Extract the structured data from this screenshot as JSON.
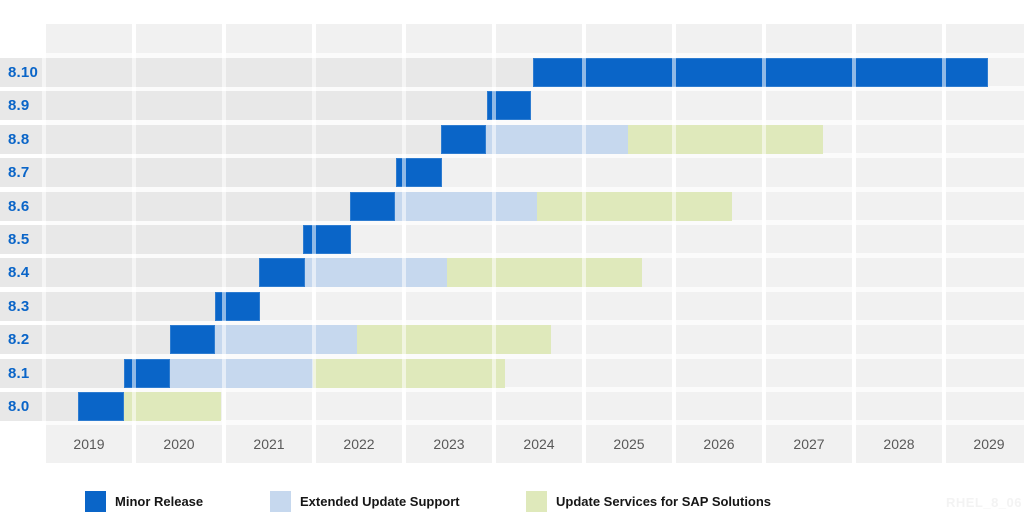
{
  "chart_data": {
    "type": "gantt",
    "title": "",
    "x_axis": {
      "tick_labels": [
        "2019",
        "2020",
        "2021",
        "2022",
        "2023",
        "2024",
        "2025",
        "2026",
        "2027",
        "2028",
        "2029"
      ],
      "range": [
        2019,
        2030
      ],
      "grid": true
    },
    "y_axis": {
      "labels": [
        "8.10",
        "8.9",
        "8.8",
        "8.7",
        "8.6",
        "8.5",
        "8.4",
        "8.3",
        "8.2",
        "8.1",
        "8.0"
      ]
    },
    "legend_position": "bottom",
    "rows": [
      {
        "label": "8.10",
        "minor_release": [
          2024.43,
          2029.49
        ],
        "extended_update_support": null,
        "update_services_sap": null
      },
      {
        "label": "8.9",
        "minor_release": [
          2023.92,
          2024.41
        ],
        "extended_update_support": null,
        "update_services_sap": null
      },
      {
        "label": "8.8",
        "minor_release": [
          2023.41,
          2023.91
        ],
        "extended_update_support": [
          2023.91,
          2025.49
        ],
        "update_services_sap": [
          2025.49,
          2027.66
        ]
      },
      {
        "label": "8.7",
        "minor_release": [
          2022.91,
          2023.42
        ],
        "extended_update_support": null,
        "update_services_sap": null
      },
      {
        "label": "8.6",
        "minor_release": [
          2022.4,
          2022.9
        ],
        "extended_update_support": [
          2022.9,
          2024.48
        ],
        "update_services_sap": [
          2024.48,
          2026.64
        ]
      },
      {
        "label": "8.5",
        "minor_release": [
          2021.88,
          2022.41
        ],
        "extended_update_support": null,
        "update_services_sap": null
      },
      {
        "label": "8.4",
        "minor_release": [
          2021.39,
          2021.9
        ],
        "extended_update_support": [
          2021.9,
          2023.48
        ],
        "update_services_sap": [
          2023.48,
          2025.64
        ]
      },
      {
        "label": "8.3",
        "minor_release": [
          2020.9,
          2021.4
        ],
        "extended_update_support": null,
        "update_services_sap": null
      },
      {
        "label": "8.2",
        "minor_release": [
          2020.4,
          2020.9
        ],
        "extended_update_support": [
          2020.9,
          2022.48
        ],
        "update_services_sap": [
          2022.48,
          2024.63
        ]
      },
      {
        "label": "8.1",
        "minor_release": [
          2019.89,
          2020.4
        ],
        "extended_update_support": [
          2020.4,
          2021.99
        ],
        "update_services_sap": [
          2021.99,
          2024.12
        ]
      },
      {
        "label": "8.0",
        "minor_release": [
          2019.38,
          2019.89
        ],
        "extended_update_support": null,
        "update_services_sap": [
          2019.89,
          2020.97
        ]
      }
    ]
  },
  "legend": {
    "items": [
      {
        "key": "minor_release",
        "label": "Minor Release"
      },
      {
        "key": "extended_update_support",
        "label": "Extended Update Support"
      },
      {
        "key": "update_services_sap",
        "label": "Update Services for SAP Solutions"
      }
    ]
  },
  "colors": {
    "minor_release": "#0a65c8",
    "extended_update_support": "#c6d8ee",
    "update_services_sap": "#dfe9bb",
    "pre_release_band": "#e8e8e8",
    "year_column": "#f1f1f1",
    "row_label": "#0a65c8",
    "axis_label": "#595959",
    "legend_text": "#161616",
    "watermark": "#f3f3f3"
  },
  "watermark": "RHEL_8_06"
}
